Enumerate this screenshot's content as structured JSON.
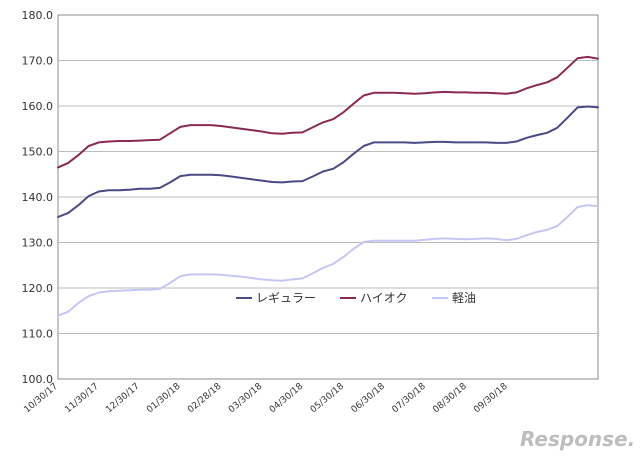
{
  "chart_data": {
    "type": "line",
    "title": "",
    "xlabel": "",
    "ylabel": "",
    "ylim": [
      100,
      180
    ],
    "yticks": [
      "100.0",
      "110.0",
      "120.0",
      "130.0",
      "140.0",
      "150.0",
      "160.0",
      "170.0",
      "180.0"
    ],
    "x_tick_labels": [
      "10/30/17",
      "11/30/17",
      "12/30/17",
      "01/30/18",
      "02/28/18",
      "03/30/18",
      "04/30/18",
      "05/30/18",
      "06/30/18",
      "07/30/18",
      "08/30/18",
      "09/30/18"
    ],
    "grid": "horizontal",
    "legend_position": "center",
    "series": [
      {
        "name": "レギュラー",
        "color": "#4a4a86",
        "values": [
          135.6,
          136.5,
          138.2,
          140.2,
          141.2,
          141.5,
          141.5,
          141.6,
          141.8,
          141.8,
          142.0,
          143.2,
          144.6,
          144.9,
          144.9,
          144.9,
          144.8,
          144.5,
          144.2,
          143.9,
          143.6,
          143.3,
          143.2,
          143.4,
          143.5,
          144.5,
          145.6,
          146.2,
          147.6,
          149.5,
          151.2,
          152.0,
          152.0,
          152.0,
          152.0,
          151.9,
          152.0,
          152.1,
          152.1,
          152.0,
          152.0,
          152.0,
          152.0,
          151.9,
          151.9,
          152.2,
          153.0,
          153.6,
          154.1,
          155.2,
          157.4,
          159.7,
          159.9,
          159.7
        ]
      },
      {
        "name": "ハイオク",
        "color": "#8a2a52",
        "values": [
          146.5,
          147.5,
          149.2,
          151.2,
          152.0,
          152.2,
          152.3,
          152.3,
          152.4,
          152.5,
          152.6,
          154.0,
          155.4,
          155.8,
          155.8,
          155.8,
          155.6,
          155.3,
          155.0,
          154.7,
          154.4,
          154.0,
          153.9,
          154.1,
          154.2,
          155.3,
          156.4,
          157.1,
          158.6,
          160.5,
          162.3,
          162.9,
          162.9,
          162.9,
          162.8,
          162.7,
          162.8,
          163.0,
          163.1,
          163.0,
          163.0,
          162.9,
          162.9,
          162.8,
          162.7,
          163.0,
          163.9,
          164.6,
          165.2,
          166.3,
          168.4,
          170.5,
          170.8,
          170.4
        ]
      },
      {
        "name": "軽油",
        "color": "#c6c6f2",
        "values": [
          113.9,
          114.8,
          116.7,
          118.2,
          119.0,
          119.3,
          119.4,
          119.5,
          119.6,
          119.6,
          119.8,
          121.1,
          122.6,
          123.0,
          123.0,
          123.0,
          122.9,
          122.7,
          122.5,
          122.2,
          121.9,
          121.7,
          121.6,
          121.9,
          122.1,
          123.2,
          124.4,
          125.3,
          126.8,
          128.6,
          130.1,
          130.4,
          130.4,
          130.4,
          130.4,
          130.4,
          130.6,
          130.8,
          130.9,
          130.8,
          130.7,
          130.8,
          130.9,
          130.8,
          130.5,
          130.8,
          131.6,
          132.3,
          132.8,
          133.6,
          135.6,
          137.8,
          138.2,
          138.0
        ]
      }
    ]
  },
  "watermark": {
    "text": "Response."
  }
}
